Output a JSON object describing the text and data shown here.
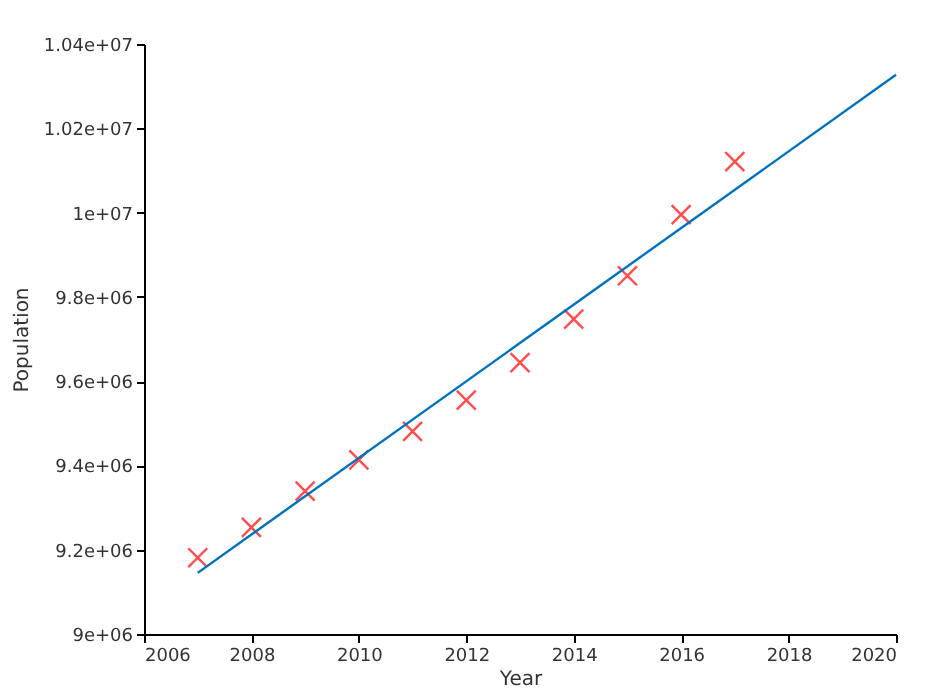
{
  "chart_data": {
    "type": "scatter",
    "xlabel": "Year",
    "ylabel": "Population",
    "xlim": [
      2006,
      2020
    ],
    "xticks": [
      2006,
      2008,
      2010,
      2012,
      2014,
      2016,
      2018,
      2020
    ],
    "ylim": [
      9000000,
      10400000
    ],
    "yticks": [
      {
        "value": 9000000,
        "label": "9e+06"
      },
      {
        "value": 9200000,
        "label": "9.2e+06"
      },
      {
        "value": 9400000,
        "label": "9.4e+06"
      },
      {
        "value": 9600000,
        "label": "9.6e+06"
      },
      {
        "value": 9800000,
        "label": "9.8e+06"
      },
      {
        "value": 10000000,
        "label": "1e+07"
      },
      {
        "value": 10200000,
        "label": "1.02e+07"
      },
      {
        "value": 10400000,
        "label": "1.04e+07"
      }
    ],
    "grid": false,
    "series": [
      {
        "marker": "cross",
        "color": "#ff0000",
        "x": [
          2007,
          2008,
          2009,
          2010,
          2011,
          2012,
          2013,
          2014,
          2015,
          2016,
          2017
        ],
        "values": [
          9181000,
          9253000,
          9339000,
          9413000,
          9481000,
          9555000,
          9644000,
          9747000,
          9850000,
          9995000,
          10121000
        ]
      },
      {
        "type": "line",
        "marker": "none",
        "line_style": "solid",
        "color": "#0072bd",
        "x": [
          2007,
          2020
        ],
        "values": [
          9145000,
          10327000
        ]
      }
    ]
  }
}
